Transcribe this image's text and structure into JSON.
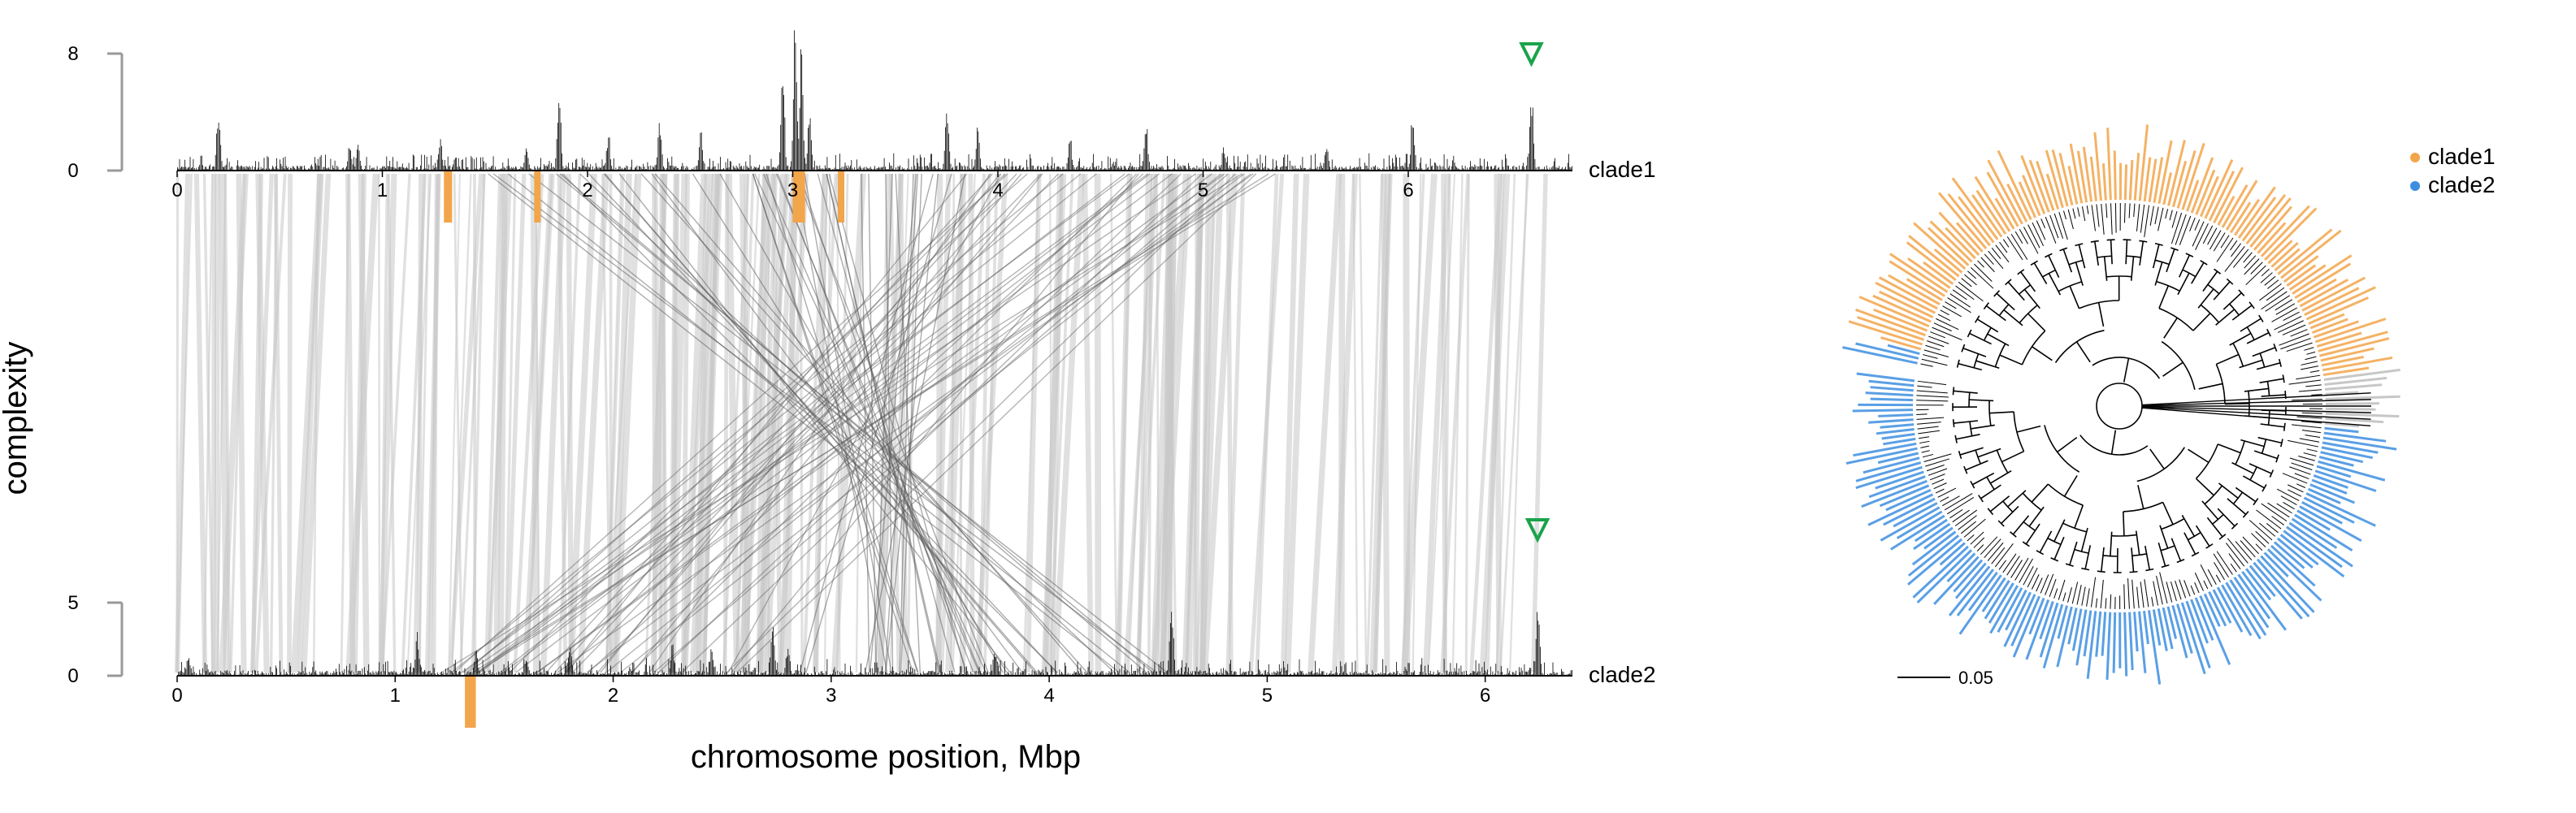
{
  "chart_data": [
    {
      "type": "line",
      "panel": "synteny",
      "ylabel": "complexity",
      "xlabel": "chromosome position, Mbp",
      "tracks": [
        {
          "name": "clade1",
          "xlim": [
            0,
            6.8
          ],
          "ylim": [
            0,
            8
          ],
          "x_ticks": [
            "0",
            "1",
            "2",
            "3",
            "4",
            "5",
            "6"
          ],
          "y_ticks": [
            "0",
            "8"
          ],
          "peaks": [
            {
              "x": 0.2,
              "y": 5.2
            },
            {
              "x": 0.84,
              "y": 2.3
            },
            {
              "x": 0.88,
              "y": 2.2
            },
            {
              "x": 1.28,
              "y": 2.7
            },
            {
              "x": 1.7,
              "y": 1.8
            },
            {
              "x": 1.86,
              "y": 6.4
            },
            {
              "x": 2.1,
              "y": 2.9
            },
            {
              "x": 2.35,
              "y": 3.9
            },
            {
              "x": 2.55,
              "y": 3.0
            },
            {
              "x": 2.95,
              "y": 7.7
            },
            {
              "x": 3.01,
              "y": 10.5
            },
            {
              "x": 3.04,
              "y": 10.5
            },
            {
              "x": 3.08,
              "y": 4.3
            },
            {
              "x": 3.75,
              "y": 4.8
            },
            {
              "x": 3.9,
              "y": 3.1
            },
            {
              "x": 4.35,
              "y": 2.7
            },
            {
              "x": 4.72,
              "y": 4.1
            },
            {
              "x": 5.1,
              "y": 1.9
            },
            {
              "x": 5.6,
              "y": 2.0
            },
            {
              "x": 6.02,
              "y": 4.3
            },
            {
              "x": 6.6,
              "y": 6.0
            }
          ],
          "highlight_regions": [
            [
              1.3,
              1.34
            ],
            [
              1.74,
              1.77
            ],
            [
              3.0,
              3.06
            ],
            [
              3.22,
              3.24
            ]
          ],
          "marker": {
            "x": 6.6,
            "shape": "triangle-down"
          }
        },
        {
          "name": "clade2",
          "xlim": [
            0,
            6.4
          ],
          "ylim": [
            0,
            5
          ],
          "x_ticks": [
            "0",
            "1",
            "2",
            "3",
            "4",
            "5",
            "6"
          ],
          "y_ticks": [
            "0",
            "5"
          ],
          "peaks": [
            {
              "x": 0.05,
              "y": 1.7
            },
            {
              "x": 1.1,
              "y": 3.5
            },
            {
              "x": 1.37,
              "y": 2.0
            },
            {
              "x": 1.6,
              "y": 1.6
            },
            {
              "x": 1.8,
              "y": 2.8
            },
            {
              "x": 2.27,
              "y": 2.3
            },
            {
              "x": 2.45,
              "y": 2.0
            },
            {
              "x": 2.73,
              "y": 4.1
            },
            {
              "x": 2.8,
              "y": 2.4
            },
            {
              "x": 3.75,
              "y": 2.0
            },
            {
              "x": 4.56,
              "y": 5.6
            },
            {
              "x": 6.24,
              "y": 5.0
            }
          ],
          "highlight_regions": [
            [
              1.32,
              1.37
            ]
          ],
          "marker": {
            "x": 6.24,
            "shape": "triangle-down"
          }
        }
      ],
      "links": {
        "from_track": "clade1",
        "to_track": "clade2",
        "colors": {
          "collinear": "#c6c6c6",
          "inverted": "#5a5a5a",
          "highlight": "#f2a54a",
          "marker": "#1aa34a"
        }
      }
    },
    {
      "type": "tree",
      "panel": "phylogeny",
      "layout": "circular",
      "legend": {
        "position": "top-right",
        "items": [
          {
            "name": "clade1",
            "color": "#f2a54a"
          },
          {
            "name": "clade2",
            "color": "#3d8ee0"
          }
        ]
      },
      "scale_bar": "0.05"
    }
  ]
}
